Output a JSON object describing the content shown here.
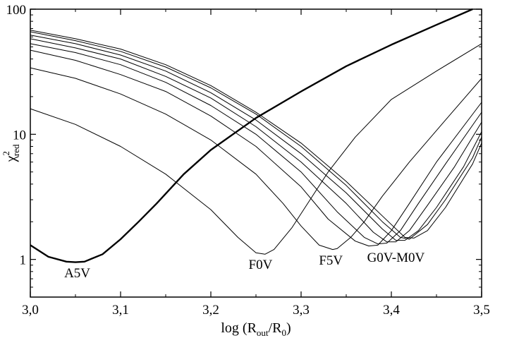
{
  "chart_data": {
    "type": "line",
    "title": "",
    "xlabel": {
      "main": "log (R",
      "sub1": "out",
      "slash": "/R",
      "sub2": "0",
      "close": ")"
    },
    "ylabel": {
      "main": "χ",
      "sup": "2",
      "sub": "red"
    },
    "xlim": [
      3.0,
      3.5
    ],
    "ylim": [
      0.5,
      100
    ],
    "yscale": "log",
    "grid": false,
    "x_ticks": [
      3.0,
      3.1,
      3.2,
      3.3,
      3.4,
      3.5
    ],
    "x_tick_labels": [
      "3,0",
      "3,1",
      "3,2",
      "3,3",
      "3,4",
      "3,5"
    ],
    "y_ticks": [
      1,
      10,
      100
    ],
    "y_tick_labels": [
      "1",
      "10",
      "100"
    ],
    "labels": [
      {
        "text": "A5V",
        "x": 3.052,
        "y": 0.72
      },
      {
        "text": "F0V",
        "x": 3.255,
        "y": 0.84
      },
      {
        "text": "F5V",
        "x": 3.333,
        "y": 0.91
      },
      {
        "text": "G0V-M0V",
        "x": 3.405,
        "y": 0.96
      }
    ],
    "series": [
      {
        "label_ref": "A5V",
        "bold": true,
        "x": [
          3.0,
          3.02,
          3.04,
          3.05,
          3.06,
          3.08,
          3.1,
          3.12,
          3.14,
          3.17,
          3.2,
          3.25,
          3.3,
          3.35,
          3.4,
          3.45,
          3.49
        ],
        "y": [
          1.3,
          1.05,
          0.96,
          0.95,
          0.96,
          1.1,
          1.45,
          2.0,
          2.8,
          4.8,
          7.5,
          13.5,
          22.0,
          35.0,
          52.0,
          75.0,
          100.0
        ]
      },
      {
        "label_ref": "F0V",
        "x": [
          3.0,
          3.05,
          3.1,
          3.15,
          3.2,
          3.23,
          3.25,
          3.26,
          3.27,
          3.29,
          3.31,
          3.33,
          3.36,
          3.4,
          3.45,
          3.5
        ],
        "y": [
          16.0,
          12.0,
          8.0,
          4.8,
          2.5,
          1.5,
          1.13,
          1.1,
          1.2,
          1.8,
          3.0,
          5.0,
          9.5,
          19.0,
          32.0,
          53.0
        ]
      },
      {
        "label_ref": "F5V",
        "x": [
          3.0,
          3.05,
          3.1,
          3.15,
          3.2,
          3.25,
          3.28,
          3.3,
          3.32,
          3.335,
          3.34,
          3.355,
          3.37,
          3.39,
          3.42,
          3.46,
          3.5
        ],
        "y": [
          34.0,
          28.0,
          21.0,
          14.5,
          9.0,
          4.8,
          2.8,
          1.85,
          1.3,
          1.2,
          1.22,
          1.5,
          2.0,
          3.2,
          6.0,
          13.0,
          28.0
        ]
      },
      {
        "label_ref": "G0V-M0V",
        "x": [
          3.0,
          3.05,
          3.1,
          3.15,
          3.2,
          3.25,
          3.3,
          3.33,
          3.36,
          3.375,
          3.385,
          3.4,
          3.42,
          3.45,
          3.5
        ],
        "y": [
          47.0,
          39.0,
          30.0,
          22.0,
          14.0,
          8.0,
          3.8,
          2.1,
          1.4,
          1.28,
          1.3,
          1.7,
          2.8,
          6.0,
          18.0
        ]
      },
      {
        "label_ref": "G0V-M0V",
        "x": [
          3.0,
          3.05,
          3.1,
          3.15,
          3.2,
          3.25,
          3.3,
          3.34,
          3.37,
          3.385,
          3.395,
          3.41,
          3.43,
          3.46,
          3.5
        ],
        "y": [
          53.0,
          45.0,
          36.0,
          26.0,
          17.0,
          10.0,
          5.0,
          2.4,
          1.5,
          1.33,
          1.35,
          1.7,
          2.8,
          5.8,
          15.0
        ]
      },
      {
        "label_ref": "G0V-M0V",
        "x": [
          3.0,
          3.05,
          3.1,
          3.15,
          3.2,
          3.25,
          3.3,
          3.35,
          3.38,
          3.395,
          3.405,
          3.42,
          3.44,
          3.47,
          3.5
        ],
        "y": [
          58.0,
          49.0,
          40.0,
          29.0,
          19.5,
          11.5,
          6.0,
          2.8,
          1.65,
          1.38,
          1.38,
          1.7,
          2.7,
          5.5,
          12.5
        ]
      },
      {
        "label_ref": "G0V-M0V",
        "x": [
          3.0,
          3.05,
          3.1,
          3.15,
          3.2,
          3.25,
          3.3,
          3.35,
          3.39,
          3.405,
          3.415,
          3.43,
          3.45,
          3.48,
          3.5
        ],
        "y": [
          62.0,
          53.0,
          43.0,
          32.0,
          21.5,
          13.0,
          7.0,
          3.4,
          1.75,
          1.42,
          1.42,
          1.7,
          2.6,
          5.5,
          10.5
        ]
      },
      {
        "label_ref": "G0V-M0V",
        "x": [
          3.0,
          3.05,
          3.1,
          3.15,
          3.2,
          3.25,
          3.3,
          3.35,
          3.39,
          3.41,
          3.42,
          3.44,
          3.46,
          3.49,
          3.5
        ],
        "y": [
          66.0,
          56.0,
          46.0,
          34.5,
          23.5,
          14.5,
          8.0,
          3.9,
          2.0,
          1.5,
          1.45,
          1.9,
          3.0,
          6.5,
          9.5
        ]
      },
      {
        "label_ref": "G0V-M0V",
        "x": [
          3.0,
          3.05,
          3.1,
          3.15,
          3.2,
          3.25,
          3.3,
          3.35,
          3.4,
          3.415,
          3.425,
          3.44,
          3.46,
          3.49,
          3.5
        ],
        "y": [
          68.0,
          58.0,
          48.0,
          36.0,
          24.5,
          15.0,
          8.5,
          4.2,
          1.9,
          1.5,
          1.48,
          1.7,
          2.6,
          5.8,
          8.5
        ]
      }
    ]
  }
}
